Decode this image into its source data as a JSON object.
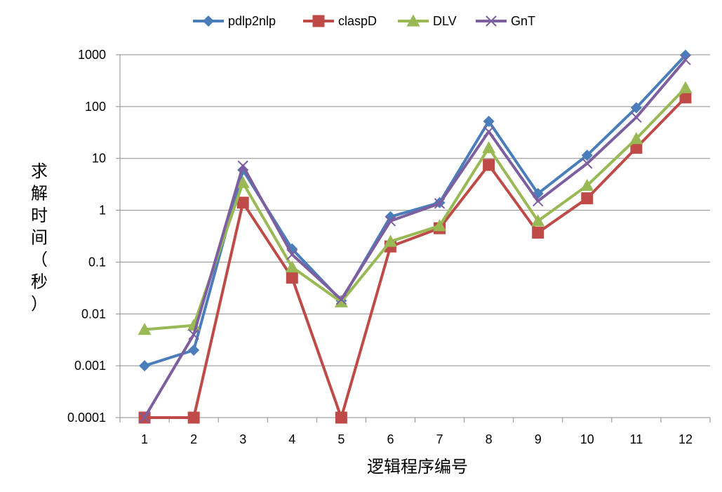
{
  "chart_data": {
    "type": "line",
    "xlabel": "逻辑程序编号",
    "ylabel": "求解时间（秒）",
    "y_scale": "log",
    "ylim": [
      0.0001,
      1000
    ],
    "y_ticks": [
      "0.0001",
      "0.001",
      "0.01",
      "0.1",
      "1",
      "10",
      "100",
      "1000"
    ],
    "categories": [
      "1",
      "2",
      "3",
      "4",
      "5",
      "6",
      "7",
      "8",
      "9",
      "10",
      "11",
      "12"
    ],
    "grid": "horizontal",
    "legend_position": "top",
    "series": [
      {
        "name": "pdlp2nlp",
        "color": "#4a7ebb",
        "marker": "diamond",
        "values": [
          0.001,
          0.002,
          6,
          0.18,
          0.018,
          0.75,
          1.4,
          52,
          2.1,
          11.5,
          95,
          980
        ]
      },
      {
        "name": "claspD",
        "color": "#be4b48",
        "marker": "square",
        "values": [
          0.0001,
          0.0001,
          1.4,
          0.05,
          0.0001,
          0.2,
          0.45,
          7.5,
          0.37,
          1.7,
          16,
          150
        ]
      },
      {
        "name": "DLV",
        "color": "#98b954",
        "marker": "triangle",
        "values": [
          0.005,
          0.006,
          3.4,
          0.08,
          0.017,
          0.25,
          0.5,
          16,
          0.62,
          3.0,
          24,
          230
        ]
      },
      {
        "name": "GnT",
        "color": "#7d5fa0",
        "marker": "x",
        "values": [
          0.0001,
          0.004,
          7.2,
          0.14,
          0.019,
          0.62,
          1.35,
          33,
          1.5,
          8,
          62,
          800
        ]
      }
    ]
  }
}
